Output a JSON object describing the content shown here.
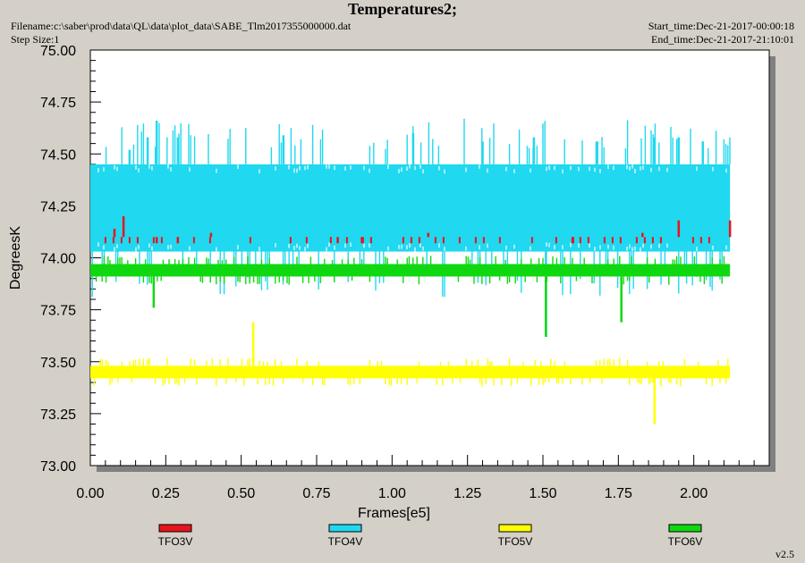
{
  "header": {
    "title": "Temperatures2;",
    "filename": "Filename:c:\\saber\\prod\\data\\QL\\data\\plot_data\\SABE_Tlm2017355000000.dat",
    "step_size": "Step Size:1",
    "start_time": "Start_time:Dec-21-2017-00:00:18",
    "end_time": "End_time:Dec-21-2017-21:10:01"
  },
  "version": "v2.5",
  "colors": {
    "TFO3V": "#e8141c",
    "TFO4V": "#20d8f0",
    "TFO5V": "#ffff00",
    "TFO6V": "#10d810"
  },
  "chart_data": {
    "type": "line",
    "title": "Temperatures2;",
    "xlabel": "Frames[e5]",
    "ylabel": "DegreesK",
    "xlim": [
      0,
      2.25
    ],
    "ylim": [
      73.0,
      75.0
    ],
    "x_ticks": [
      "0.00",
      "0.25",
      "0.50",
      "0.75",
      "1.00",
      "1.25",
      "1.50",
      "1.75",
      "2.00"
    ],
    "y_ticks": [
      "73.00",
      "73.25",
      "73.50",
      "73.75",
      "74.00",
      "74.25",
      "74.50",
      "74.75",
      "75.00"
    ],
    "legend_placement": "bottom",
    "series": [
      {
        "name": "TFO3V",
        "band": [
          74.07,
          74.1
        ],
        "spikes": [
          [
            0.08,
            74.14
          ],
          [
            0.11,
            74.2
          ],
          [
            0.22,
            74.1
          ],
          [
            0.29,
            74.1
          ],
          [
            0.4,
            74.12
          ],
          [
            0.82,
            74.1
          ],
          [
            0.9,
            74.1
          ],
          [
            1.12,
            74.12
          ],
          [
            1.6,
            74.1
          ],
          [
            1.83,
            74.12
          ],
          [
            1.95,
            74.18
          ],
          [
            2.12,
            74.18
          ]
        ]
      },
      {
        "name": "TFO4V",
        "band": [
          74.03,
          74.45
        ],
        "spikes": [
          [
            0.13,
            74.52
          ],
          [
            0.19,
            74.58
          ],
          [
            0.22,
            74.66
          ],
          [
            0.29,
            74.58
          ],
          [
            0.64,
            74.59
          ],
          [
            1.07,
            74.6
          ],
          [
            1.3,
            74.56
          ],
          [
            1.47,
            74.58
          ],
          [
            1.51,
            73.62
          ],
          [
            1.68,
            74.56
          ],
          [
            1.87,
            74.58
          ],
          [
            1.95,
            74.58
          ],
          [
            2.03,
            74.56
          ]
        ]
      },
      {
        "name": "TFO5V",
        "band": [
          73.42,
          73.48
        ],
        "spikes": [
          [
            0.54,
            73.69
          ],
          [
            1.87,
            73.2
          ]
        ]
      },
      {
        "name": "TFO6V",
        "band": [
          73.91,
          73.97
        ],
        "spikes": [
          [
            0.21,
            73.76
          ],
          [
            1.51,
            73.62
          ],
          [
            1.76,
            73.69
          ]
        ]
      }
    ]
  }
}
